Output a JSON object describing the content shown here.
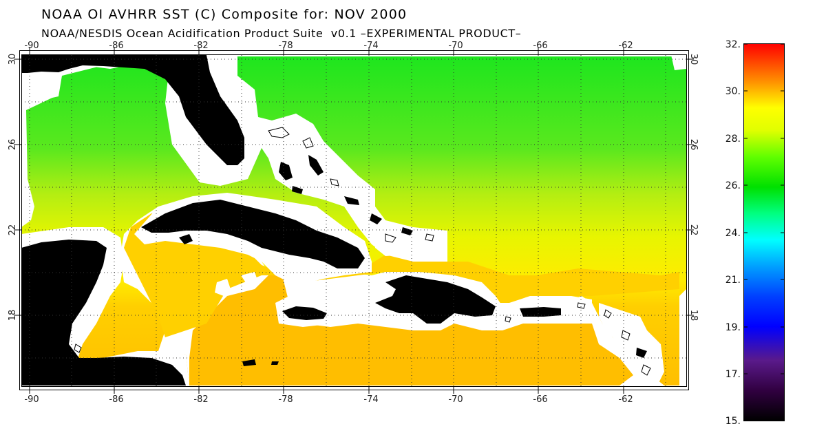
{
  "title": "NOAA OI AVHRR SST (C) Composite for: NOV 2000",
  "subtitle": "NOAA/NESDIS Ocean Acidification Product Suite  v0.1 –EXPERIMENTAL PRODUCT–",
  "map": {
    "lon_range": [
      -91,
      -60
    ],
    "lat_range": [
      15,
      30.5
    ],
    "lon_ticks": [
      "-90",
      "-86",
      "-82",
      "-78",
      "-74",
      "-70",
      "-66",
      "-62"
    ],
    "lat_ticks": [
      "30",
      "26",
      "22",
      "18"
    ],
    "gridlines": "dotted",
    "land_color": "#000000",
    "missing_color": "#ffffff"
  },
  "colorbar": {
    "labels": [
      "32.",
      "30.",
      "28.",
      "26.",
      "24.",
      "21.",
      "19.",
      "17.",
      "15."
    ],
    "min": 15,
    "max": 32,
    "units": "C",
    "colors": [
      "#ff0000",
      "#ff8000",
      "#ffff00",
      "#80ff00",
      "#00e000",
      "#00ffc0",
      "#00a0ff",
      "#0000ff",
      "#400080",
      "#000000"
    ]
  }
}
